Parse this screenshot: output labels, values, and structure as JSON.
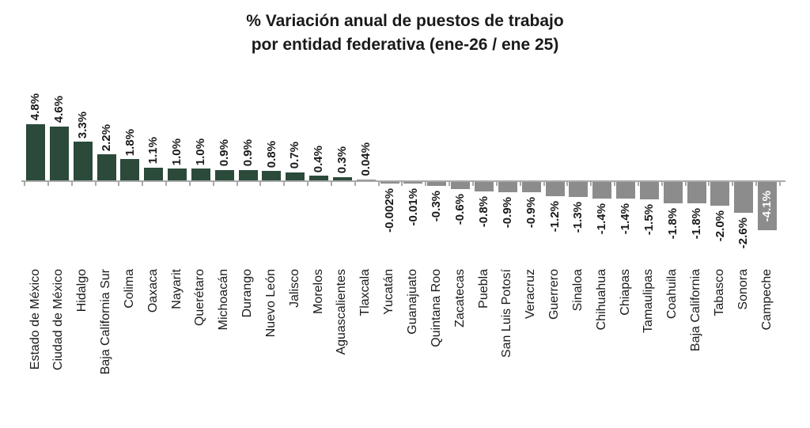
{
  "title": {
    "line1": "% Variación anual de puestos de trabajo",
    "line2": "por entidad federativa (ene-26 / ene 25)"
  },
  "chart_data": {
    "type": "bar",
    "title": "% Variación anual de puestos de trabajo por entidad federativa (ene-26 / ene 25)",
    "xlabel": "",
    "ylabel": "",
    "unit": "%",
    "ylim": [
      -4.5,
      5.0
    ],
    "grid": false,
    "legend_position": "none",
    "categories": [
      "Estado de México",
      "Ciudad de México",
      "Hidalgo",
      "Baja California Sur",
      "Colima",
      "Oaxaca",
      "Nayarit",
      "Querétaro",
      "Michoacán",
      "Durango",
      "Nuevo León",
      "Jalisco",
      "Morelos",
      "Aguascalientes",
      "Tlaxcala",
      "Yucatán",
      "Guanajuato",
      "Quintana Roo",
      "Zacatecas",
      "Puebla",
      "San Luis Potosí",
      "Veracruz",
      "Guerrero",
      "Sinaloa",
      "Chihuahua",
      "Chiapas",
      "Tamaulipas",
      "Coahuila",
      "Baja California",
      "Tabasco",
      "Sonora",
      "Campeche"
    ],
    "values": [
      4.8,
      4.6,
      3.3,
      2.2,
      1.8,
      1.1,
      1.0,
      1.0,
      0.9,
      0.9,
      0.8,
      0.7,
      0.4,
      0.3,
      0.04,
      -0.002,
      -0.01,
      -0.3,
      -0.6,
      -0.8,
      -0.9,
      -0.9,
      -1.2,
      -1.3,
      -1.4,
      -1.4,
      -1.5,
      -1.8,
      -1.8,
      -2.0,
      -2.6,
      -4.1
    ],
    "value_labels": [
      "4.8%",
      "4.6%",
      "3.3%",
      "2.2%",
      "1.8%",
      "1.1%",
      "1.0%",
      "1.0%",
      "0.9%",
      "0.9%",
      "0.8%",
      "0.7%",
      "0.4%",
      "0.3%",
      "0.04%",
      "-0.002%",
      "-0.01%",
      "-0.3%",
      "-0.6%",
      "-0.8%",
      "-0.9%",
      "-0.9%",
      "-1.2%",
      "-1.3%",
      "-1.4%",
      "-1.4%",
      "-1.5%",
      "-1.8%",
      "-1.8%",
      "-2.0%",
      "-2.6%",
      "-4.1%"
    ],
    "bar_colors": [
      "#2b4a3a",
      "#2b4a3a",
      "#2b4a3a",
      "#2b4a3a",
      "#2b4a3a",
      "#2b4a3a",
      "#2b4a3a",
      "#2b4a3a",
      "#2b4a3a",
      "#2b4a3a",
      "#2b4a3a",
      "#2b4a3a",
      "#2b4a3a",
      "#2b4a3a",
      "#8c8c8c",
      "#8c8c8c",
      "#8c8c8c",
      "#8c8c8c",
      "#8c8c8c",
      "#8c8c8c",
      "#8c8c8c",
      "#8c8c8c",
      "#8c8c8c",
      "#8c8c8c",
      "#8c8c8c",
      "#8c8c8c",
      "#8c8c8c",
      "#8c8c8c",
      "#8c8c8c",
      "#8c8c8c",
      "#8c8c8c",
      "#8c8c8c"
    ],
    "positive_color": "#2b4a3a",
    "negative_color": "#8c8c8c",
    "axis_color": "#a9a9a9",
    "label_color": "#1a1a1a",
    "inside_label_color": "#ffffff",
    "last_value_label_inside": true
  }
}
